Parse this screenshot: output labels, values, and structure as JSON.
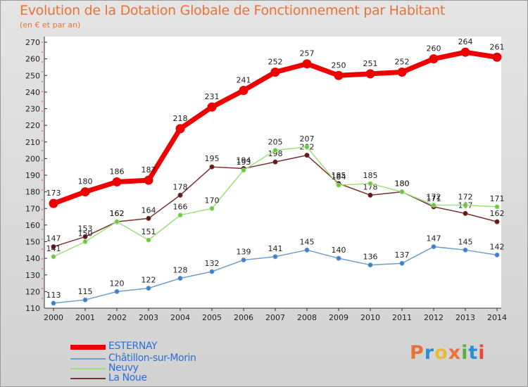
{
  "title": "Evolution de la Dotation Globale de Fonctionnement par Habitant",
  "subtitle": "(en € et par an)",
  "logo": {
    "text": "Proxiti",
    "colors": [
      "#e8733a",
      "#2a8fd6",
      "#e8b93a",
      "#e8733a",
      "#5ab040",
      "#2a8fd6",
      "#e84a3a"
    ]
  },
  "chart_data": {
    "type": "line",
    "title": "Evolution de la Dotation Globale de Fonctionnement par Habitant",
    "subtitle": "(en € et par an)",
    "xlabel": "",
    "ylabel": "",
    "x": [
      "2000",
      "2001",
      "2002",
      "2003",
      "2004",
      "2005",
      "2006",
      "2007",
      "2008",
      "2009",
      "2010",
      "2011",
      "2012",
      "2013",
      "2014"
    ],
    "ylim": [
      110,
      270
    ],
    "yticks": [
      110,
      120,
      130,
      140,
      150,
      160,
      170,
      180,
      190,
      200,
      210,
      220,
      230,
      240,
      250,
      260,
      270
    ],
    "grid": false,
    "legend_position": "bottom-left",
    "series": [
      {
        "name": "ESTERNAY",
        "color": "#ee0000",
        "width": 7,
        "values": [
          173,
          180,
          186,
          187,
          218,
          231,
          241,
          252,
          257,
          250,
          251,
          252,
          260,
          264,
          261
        ]
      },
      {
        "name": "Châtillon-sur-Morin",
        "color": "#6f9ed0",
        "marker": "#3a7fc8",
        "values": [
          113,
          115,
          120,
          122,
          128,
          132,
          139,
          141,
          145,
          140,
          136,
          137,
          147,
          145,
          142
        ]
      },
      {
        "name": "Neuvy",
        "color": "#9fe07a",
        "marker": "#6cc04a",
        "values": [
          141,
          150,
          162,
          151,
          166,
          170,
          193,
          205,
          207,
          184,
          185,
          180,
          172,
          172,
          171
        ]
      },
      {
        "name": "La Noue",
        "color": "#7a3030",
        "marker": "#5a1a1a",
        "values": [
          147,
          153,
          162,
          164,
          178,
          195,
          194,
          198,
          202,
          185,
          178,
          180,
          171,
          167,
          162
        ]
      }
    ]
  }
}
